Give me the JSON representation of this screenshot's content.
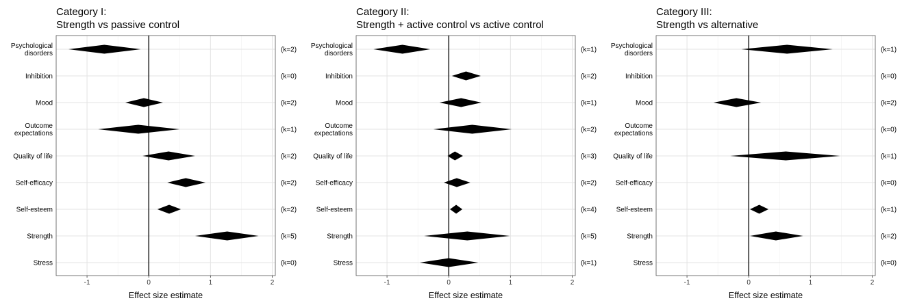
{
  "chart_data": [
    {
      "type": "forest",
      "title": "Category I:",
      "subtitle": "Strength vs passive control",
      "xlabel": "Effect size estimate",
      "xlim": [
        -1.5,
        2.05
      ],
      "xticks": [
        -1,
        0,
        1,
        2
      ],
      "grid": true,
      "reference_line": 0,
      "rows": [
        {
          "label": [
            "Psychological",
            "disorders"
          ],
          "est": -0.72,
          "lo": -1.3,
          "hi": -0.13,
          "k": "(k=2)"
        },
        {
          "label": [
            "Inhibition"
          ],
          "est": null,
          "lo": null,
          "hi": null,
          "k": "(k=0)"
        },
        {
          "label": [
            "Mood"
          ],
          "est": -0.08,
          "lo": -0.38,
          "hi": 0.23,
          "k": "(k=2)"
        },
        {
          "label": [
            "Outcome",
            "expectations"
          ],
          "est": -0.17,
          "lo": -0.82,
          "hi": 0.5,
          "k": "(k=1)"
        },
        {
          "label": [
            "Quality of life"
          ],
          "est": 0.32,
          "lo": -0.1,
          "hi": 0.75,
          "k": "(k=2)"
        },
        {
          "label": [
            "Self-efficacy"
          ],
          "est": 0.6,
          "lo": 0.3,
          "hi": 0.92,
          "k": "(k=2)"
        },
        {
          "label": [
            "Self-esteem"
          ],
          "est": 0.33,
          "lo": 0.14,
          "hi": 0.52,
          "k": "(k=2)"
        },
        {
          "label": [
            "Strength"
          ],
          "est": 1.27,
          "lo": 0.75,
          "hi": 1.78,
          "k": "(k=5)"
        },
        {
          "label": [
            "Stress"
          ],
          "est": null,
          "lo": null,
          "hi": null,
          "k": "(k=0)"
        }
      ]
    },
    {
      "type": "forest",
      "title": "Category II:",
      "subtitle": "Strength + active control vs active control",
      "xlabel": "Effect size estimate",
      "xlim": [
        -1.5,
        2.05
      ],
      "xticks": [
        -1,
        0,
        1,
        2
      ],
      "grid": true,
      "reference_line": 0,
      "rows": [
        {
          "label": [
            "Psychological",
            "disorders"
          ],
          "est": -0.75,
          "lo": -1.22,
          "hi": -0.3,
          "k": "(k=1)"
        },
        {
          "label": [
            "Inhibition"
          ],
          "est": 0.28,
          "lo": 0.05,
          "hi": 0.52,
          "k": "(k=2)"
        },
        {
          "label": [
            "Mood"
          ],
          "est": 0.2,
          "lo": -0.15,
          "hi": 0.53,
          "k": "(k=1)"
        },
        {
          "label": [
            "Outcome",
            "expectations"
          ],
          "est": 0.38,
          "lo": -0.25,
          "hi": 1.02,
          "k": "(k=2)"
        },
        {
          "label": [
            "Quality of life"
          ],
          "est": 0.1,
          "lo": -0.02,
          "hi": 0.23,
          "k": "(k=3)"
        },
        {
          "label": [
            "Self-efficacy"
          ],
          "est": 0.13,
          "lo": -0.08,
          "hi": 0.35,
          "k": "(k=2)"
        },
        {
          "label": [
            "Self-esteem"
          ],
          "est": 0.12,
          "lo": 0.02,
          "hi": 0.22,
          "k": "(k=4)"
        },
        {
          "label": [
            "Strength"
          ],
          "est": 0.3,
          "lo": -0.4,
          "hi": 0.99,
          "k": "(k=5)"
        },
        {
          "label": [
            "Stress"
          ],
          "est": 0.0,
          "lo": -0.47,
          "hi": 0.48,
          "k": "(k=1)"
        }
      ]
    },
    {
      "type": "forest",
      "title": "Category III:",
      "subtitle": "Strength vs alternative",
      "xlabel": "Effect size estimate",
      "xlim": [
        -1.5,
        2.05
      ],
      "xticks": [
        -1,
        0,
        1,
        2
      ],
      "grid": true,
      "reference_line": 0,
      "rows": [
        {
          "label": [
            "Psychological",
            "disorders"
          ],
          "est": 0.62,
          "lo": -0.12,
          "hi": 1.36,
          "k": "(k=1)"
        },
        {
          "label": [
            "Inhibition"
          ],
          "est": null,
          "lo": null,
          "hi": null,
          "k": "(k=0)"
        },
        {
          "label": [
            "Mood"
          ],
          "est": -0.2,
          "lo": -0.57,
          "hi": 0.2,
          "k": "(k=2)"
        },
        {
          "label": [
            "Outcome",
            "expectations"
          ],
          "est": null,
          "lo": null,
          "hi": null,
          "k": "(k=0)"
        },
        {
          "label": [
            "Quality of life"
          ],
          "est": 0.6,
          "lo": -0.3,
          "hi": 1.48,
          "k": "(k=1)"
        },
        {
          "label": [
            "Self-efficacy"
          ],
          "est": null,
          "lo": null,
          "hi": null,
          "k": "(k=0)"
        },
        {
          "label": [
            "Self-esteem"
          ],
          "est": 0.17,
          "lo": 0.02,
          "hi": 0.32,
          "k": "(k=1)"
        },
        {
          "label": [
            "Strength"
          ],
          "est": 0.44,
          "lo": 0.02,
          "hi": 0.88,
          "k": "(k=2)"
        },
        {
          "label": [
            "Stress"
          ],
          "est": null,
          "lo": null,
          "hi": null,
          "k": "(k=0)"
        }
      ]
    }
  ]
}
